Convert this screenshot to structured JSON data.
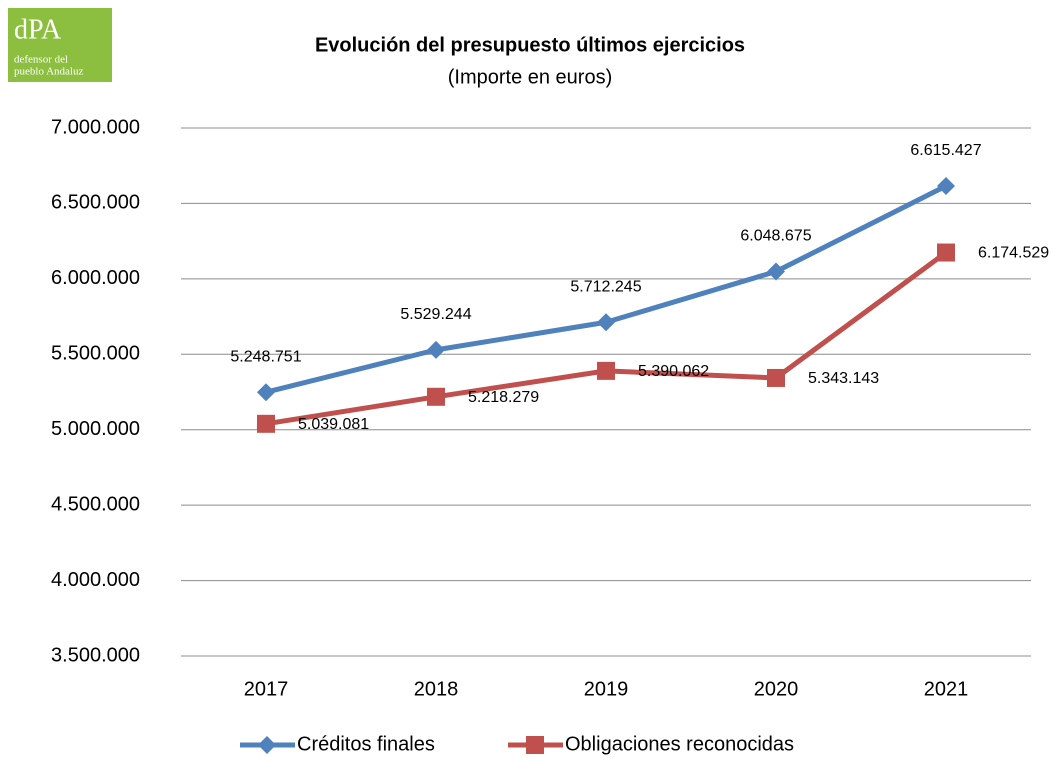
{
  "logo": {
    "mark": "dPA",
    "line1": "defensor del",
    "line2": "pueblo Andaluz"
  },
  "chart_data": {
    "type": "line",
    "title": "Evolución del presupuesto últimos ejercicios",
    "subtitle": "(Importe en euros)",
    "categories": [
      "2017",
      "2018",
      "2019",
      "2020",
      "2021"
    ],
    "series": [
      {
        "name": "Créditos finales",
        "color": "#4f81bd",
        "marker": "diamond",
        "values": [
          5248751,
          5529244,
          5712245,
          6048675,
          6615427
        ],
        "value_labels": [
          "5.248.751",
          "5.529.244",
          "5.712.245",
          "6.048.675",
          "6.615.427"
        ]
      },
      {
        "name": "Obligaciones reconocidas",
        "color": "#c0504d",
        "marker": "square",
        "values": [
          5039081,
          5218279,
          5390062,
          5343143,
          6174529
        ],
        "value_labels": [
          "5.039.081",
          "5.218.279",
          "5.390.062",
          "5.343.143",
          "6.174.529"
        ]
      }
    ],
    "ylim": [
      3500000,
      7000000
    ],
    "yticks": [
      {
        "value": 3500000,
        "label": "3.500.000"
      },
      {
        "value": 4000000,
        "label": "4.000.000"
      },
      {
        "value": 4500000,
        "label": "4.500.000"
      },
      {
        "value": 5000000,
        "label": "5.000.000"
      },
      {
        "value": 5500000,
        "label": "5.500.000"
      },
      {
        "value": 6000000,
        "label": "6.000.000"
      },
      {
        "value": 6500000,
        "label": "6.500.000"
      },
      {
        "value": 7000000,
        "label": "7.000.000"
      }
    ],
    "grid": true,
    "legend": "bottom"
  }
}
